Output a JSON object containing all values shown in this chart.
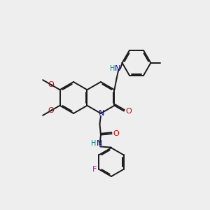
{
  "bg_color": "#eeeeee",
  "bond_color": "#1a1a1a",
  "N_color": "#0000cc",
  "O_color": "#cc0000",
  "F_color": "#cc00cc",
  "H_color": "#008080",
  "line_width": 1.4,
  "fig_size": [
    3.0,
    3.0
  ],
  "dpi": 100,
  "xlim": [
    0,
    10
  ],
  "ylim": [
    0,
    10
  ],
  "ring_r": 0.75,
  "small_r": 0.68
}
